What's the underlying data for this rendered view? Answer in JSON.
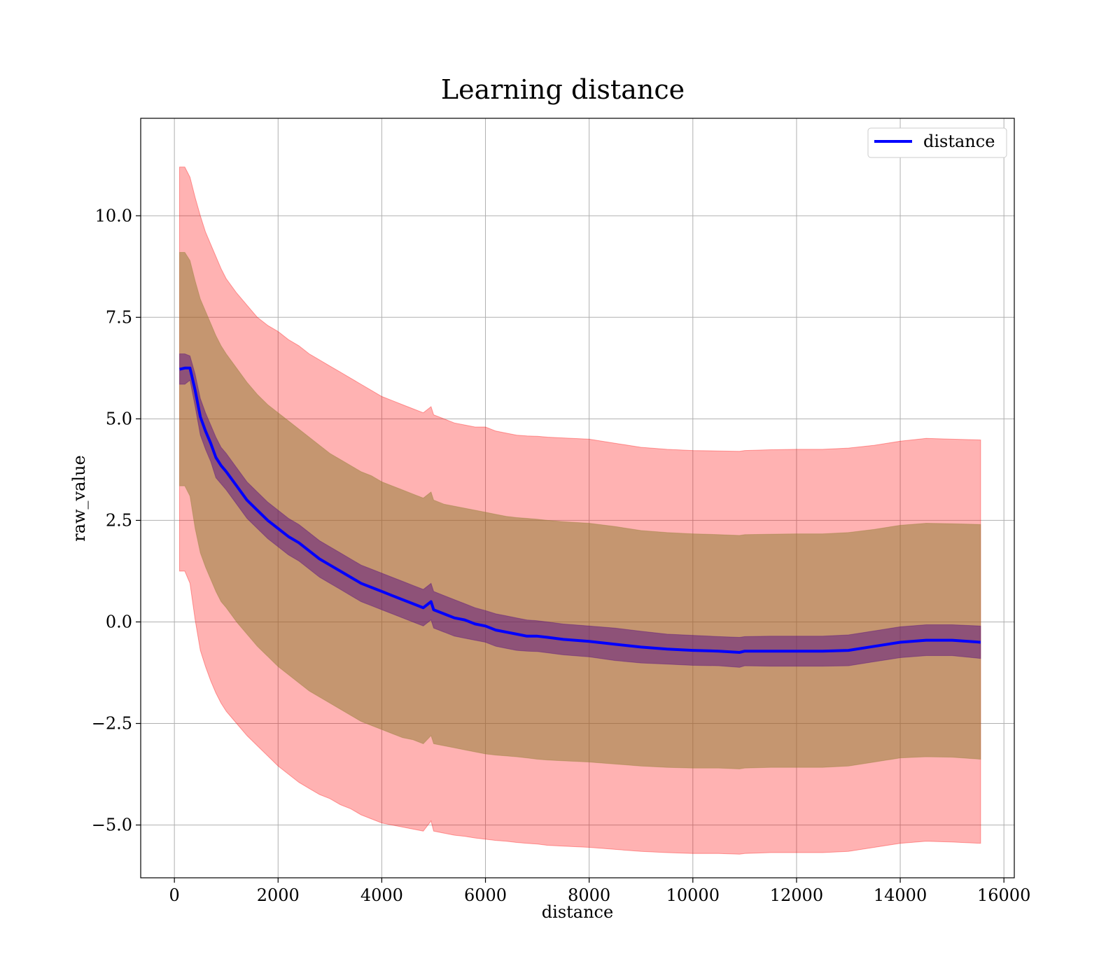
{
  "chart_data": {
    "type": "line",
    "title": "Learning distance",
    "xlabel": "distance",
    "ylabel": "raw_value",
    "xlim": [
      -650,
      16200
    ],
    "ylim": [
      -6.3,
      12.4
    ],
    "xticks": [
      0,
      2000,
      4000,
      6000,
      8000,
      10000,
      12000,
      14000,
      16000
    ],
    "xtick_labels": [
      "0",
      "2000",
      "4000",
      "6000",
      "8000",
      "10000",
      "12000",
      "14000",
      "16000"
    ],
    "yticks": [
      -5.0,
      -2.5,
      0.0,
      2.5,
      5.0,
      7.5,
      10.0
    ],
    "ytick_labels": [
      "−5.0",
      "−2.5",
      "0.0",
      "2.5",
      "5.0",
      "7.5",
      "10.0"
    ],
    "grid": true,
    "legend": {
      "position": "top-right",
      "entries": [
        {
          "label": "distance",
          "color": "#0000ff"
        }
      ]
    },
    "colors": {
      "line": "#0000ff",
      "band_outer": "#ff0000",
      "band_middle": "#8b7a2e",
      "band_inner": "#4b0082"
    },
    "x": [
      100,
      200,
      300,
      400,
      500,
      600,
      700,
      800,
      900,
      1000,
      1200,
      1400,
      1600,
      1800,
      2000,
      2200,
      2400,
      2600,
      2800,
      3000,
      3200,
      3400,
      3600,
      3800,
      4000,
      4200,
      4400,
      4600,
      4800,
      4950,
      5000,
      5200,
      5400,
      5600,
      5800,
      6000,
      6200,
      6400,
      6600,
      6800,
      7000,
      7200,
      7500,
      8000,
      8500,
      9000,
      9500,
      10000,
      10500,
      10900,
      11000,
      11500,
      12000,
      12500,
      13000,
      13500,
      14000,
      14500,
      15000,
      15550
    ],
    "series": [
      {
        "name": "distance",
        "values": [
          6.22,
          6.25,
          6.25,
          5.7,
          5.05,
          4.7,
          4.4,
          4.05,
          3.85,
          3.7,
          3.35,
          3.0,
          2.75,
          2.5,
          2.3,
          2.1,
          1.95,
          1.75,
          1.55,
          1.4,
          1.25,
          1.1,
          0.95,
          0.85,
          0.75,
          0.65,
          0.55,
          0.45,
          0.35,
          0.5,
          0.3,
          0.2,
          0.1,
          0.05,
          -0.05,
          -0.1,
          -0.2,
          -0.25,
          -0.3,
          -0.35,
          -0.35,
          -0.38,
          -0.43,
          -0.48,
          -0.55,
          -0.62,
          -0.67,
          -0.7,
          -0.72,
          -0.75,
          -0.72,
          -0.72,
          -0.72,
          -0.72,
          -0.7,
          -0.6,
          -0.5,
          -0.45,
          -0.45,
          -0.5
        ]
      }
    ],
    "bands": [
      {
        "kind": "outer",
        "upper": [
          11.2,
          11.2,
          10.95,
          10.45,
          10.0,
          9.6,
          9.3,
          9.0,
          8.7,
          8.45,
          8.1,
          7.8,
          7.5,
          7.3,
          7.15,
          6.95,
          6.8,
          6.6,
          6.45,
          6.3,
          6.15,
          6.0,
          5.85,
          5.7,
          5.55,
          5.45,
          5.35,
          5.25,
          5.15,
          5.3,
          5.1,
          5.0,
          4.9,
          4.85,
          4.8,
          4.8,
          4.7,
          4.65,
          4.6,
          4.58,
          4.57,
          4.55,
          4.53,
          4.5,
          4.4,
          4.3,
          4.25,
          4.22,
          4.21,
          4.2,
          4.22,
          4.24,
          4.25,
          4.25,
          4.28,
          4.35,
          4.45,
          4.52,
          4.5,
          4.48
        ],
        "lower": [
          1.25,
          1.25,
          0.95,
          0.05,
          -0.7,
          -1.1,
          -1.45,
          -1.75,
          -2.0,
          -2.2,
          -2.5,
          -2.8,
          -3.05,
          -3.3,
          -3.55,
          -3.75,
          -3.95,
          -4.1,
          -4.25,
          -4.35,
          -4.5,
          -4.6,
          -4.75,
          -4.85,
          -4.95,
          -5.0,
          -5.05,
          -5.1,
          -5.15,
          -4.9,
          -5.15,
          -5.2,
          -5.25,
          -5.28,
          -5.32,
          -5.35,
          -5.38,
          -5.4,
          -5.43,
          -5.45,
          -5.47,
          -5.5,
          -5.52,
          -5.55,
          -5.6,
          -5.65,
          -5.68,
          -5.7,
          -5.7,
          -5.72,
          -5.7,
          -5.68,
          -5.68,
          -5.68,
          -5.65,
          -5.55,
          -5.45,
          -5.4,
          -5.42,
          -5.45
        ]
      },
      {
        "kind": "middle",
        "upper": [
          9.1,
          9.1,
          8.9,
          8.4,
          7.95,
          7.65,
          7.35,
          7.05,
          6.8,
          6.6,
          6.25,
          5.9,
          5.6,
          5.35,
          5.15,
          4.95,
          4.75,
          4.55,
          4.35,
          4.15,
          4.0,
          3.85,
          3.7,
          3.6,
          3.45,
          3.35,
          3.25,
          3.15,
          3.05,
          3.2,
          3.0,
          2.9,
          2.85,
          2.8,
          2.75,
          2.7,
          2.65,
          2.6,
          2.57,
          2.55,
          2.53,
          2.5,
          2.47,
          2.43,
          2.35,
          2.25,
          2.2,
          2.17,
          2.15,
          2.13,
          2.15,
          2.16,
          2.17,
          2.17,
          2.2,
          2.28,
          2.38,
          2.43,
          2.42,
          2.4
        ],
        "lower": [
          3.35,
          3.35,
          3.1,
          2.3,
          1.7,
          1.35,
          1.05,
          0.75,
          0.5,
          0.35,
          0.0,
          -0.3,
          -0.6,
          -0.85,
          -1.1,
          -1.3,
          -1.5,
          -1.7,
          -1.85,
          -2.0,
          -2.15,
          -2.3,
          -2.45,
          -2.55,
          -2.65,
          -2.75,
          -2.85,
          -2.9,
          -3.0,
          -2.8,
          -3.0,
          -3.05,
          -3.1,
          -3.15,
          -3.2,
          -3.25,
          -3.28,
          -3.3,
          -3.32,
          -3.35,
          -3.38,
          -3.4,
          -3.42,
          -3.45,
          -3.5,
          -3.55,
          -3.58,
          -3.6,
          -3.6,
          -3.62,
          -3.6,
          -3.58,
          -3.58,
          -3.58,
          -3.55,
          -3.45,
          -3.35,
          -3.32,
          -3.33,
          -3.38
        ]
      },
      {
        "kind": "inner",
        "upper": [
          6.6,
          6.6,
          6.55,
          6.1,
          5.5,
          5.15,
          4.85,
          4.55,
          4.3,
          4.15,
          3.8,
          3.45,
          3.2,
          2.95,
          2.75,
          2.55,
          2.4,
          2.2,
          2.0,
          1.85,
          1.7,
          1.55,
          1.4,
          1.3,
          1.2,
          1.1,
          1.0,
          0.9,
          0.8,
          0.95,
          0.75,
          0.65,
          0.55,
          0.45,
          0.35,
          0.28,
          0.2,
          0.15,
          0.1,
          0.05,
          0.03,
          0.0,
          -0.05,
          -0.1,
          -0.15,
          -0.23,
          -0.3,
          -0.33,
          -0.36,
          -0.38,
          -0.36,
          -0.35,
          -0.35,
          -0.35,
          -0.32,
          -0.22,
          -0.12,
          -0.07,
          -0.07,
          -0.1
        ],
        "lower": [
          5.85,
          5.85,
          5.95,
          5.3,
          4.6,
          4.25,
          3.95,
          3.55,
          3.4,
          3.25,
          2.9,
          2.55,
          2.3,
          2.05,
          1.85,
          1.65,
          1.5,
          1.3,
          1.1,
          0.95,
          0.8,
          0.65,
          0.5,
          0.4,
          0.3,
          0.2,
          0.1,
          0.0,
          -0.1,
          0.05,
          -0.15,
          -0.25,
          -0.35,
          -0.4,
          -0.45,
          -0.5,
          -0.6,
          -0.65,
          -0.7,
          -0.72,
          -0.73,
          -0.76,
          -0.81,
          -0.86,
          -0.95,
          -1.01,
          -1.04,
          -1.07,
          -1.08,
          -1.12,
          -1.08,
          -1.09,
          -1.09,
          -1.09,
          -1.08,
          -0.98,
          -0.88,
          -0.83,
          -0.83,
          -0.9
        ]
      }
    ]
  }
}
